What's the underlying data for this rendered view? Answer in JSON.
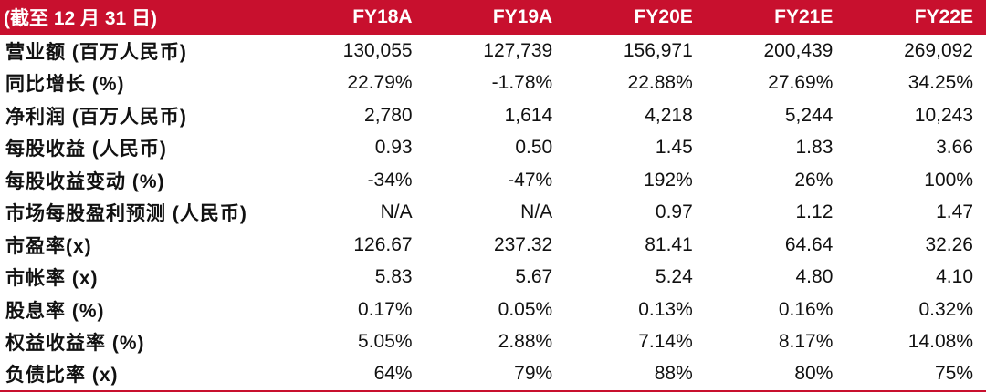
{
  "header": {
    "row_label": "(截至 12 月 31 日)",
    "columns": [
      "FY18A",
      "FY19A",
      "FY20E",
      "FY21E",
      "FY22E"
    ]
  },
  "rows": [
    {
      "label": "营业额 (百万人民币)",
      "values": [
        "130,055",
        "127,739",
        "156,971",
        "200,439",
        "269,092"
      ]
    },
    {
      "label": "同比增长 (%)",
      "values": [
        "22.79%",
        "-1.78%",
        "22.88%",
        "27.69%",
        "34.25%"
      ]
    },
    {
      "label": "净利润 (百万人民币)",
      "values": [
        "2,780",
        "1,614",
        "4,218",
        "5,244",
        "10,243"
      ]
    },
    {
      "label": "每股收益 (人民币)",
      "values": [
        "0.93",
        "0.50",
        "1.45",
        "1.83",
        "3.66"
      ]
    },
    {
      "label": "每股收益变动 (%)",
      "values": [
        "-34%",
        "-47%",
        "192%",
        "26%",
        "100%"
      ]
    },
    {
      "label": "市场每股盈利预测 (人民币)",
      "values": [
        "N/A",
        "N/A",
        "0.97",
        "1.12",
        "1.47"
      ]
    },
    {
      "label": "市盈率(x)",
      "values": [
        "126.67",
        "237.32",
        "81.41",
        "64.64",
        "32.26"
      ]
    },
    {
      "label": "市帐率 (x)",
      "values": [
        "5.83",
        "5.67",
        "5.24",
        "4.80",
        "4.10"
      ]
    },
    {
      "label": "股息率 (%)",
      "values": [
        "0.17%",
        "0.05%",
        "0.13%",
        "0.16%",
        "0.32%"
      ]
    },
    {
      "label": "权益收益率 (%)",
      "values": [
        "5.05%",
        "2.88%",
        "7.14%",
        "8.17%",
        "14.08%"
      ]
    },
    {
      "label": "负债比率 (x)",
      "values": [
        "64%",
        "79%",
        "88%",
        "80%",
        "75%"
      ]
    }
  ],
  "colors": {
    "header_background": "#c8102e",
    "header_text": "#ffffff",
    "body_text": "#111111"
  }
}
